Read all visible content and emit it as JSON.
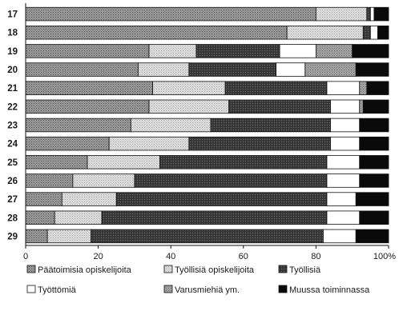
{
  "chart_data": {
    "type": "bar",
    "orientation": "horizontal",
    "stacked": true,
    "title": "",
    "xlabel": "",
    "ylabel": "",
    "xlim": [
      0,
      100
    ],
    "x_ticks": [
      "0",
      "20",
      "40",
      "60",
      "80",
      "100%"
    ],
    "grid": false,
    "legend_position": "bottom",
    "categories": [
      "17",
      "18",
      "19",
      "20",
      "21",
      "22",
      "23",
      "24",
      "25",
      "26",
      "27",
      "28",
      "29"
    ],
    "series": [
      {
        "name": "Päätoimisia opiskelijoita",
        "color": "#8a8a8a",
        "pattern": "dots-dense",
        "values": [
          80,
          72,
          34,
          31,
          35,
          34,
          29,
          23,
          17,
          13,
          10,
          8,
          6
        ]
      },
      {
        "name": "Työllisiä opiskelijoita",
        "color": "#d2d2d2",
        "pattern": "dots-light",
        "values": [
          14,
          21,
          13,
          14,
          20,
          22,
          22,
          22,
          20,
          17,
          15,
          13,
          12
        ]
      },
      {
        "name": "Työllisiä",
        "color": "#3a3a3a",
        "pattern": "dots-dark",
        "values": [
          1,
          2,
          23,
          24,
          28,
          28,
          33,
          39,
          46,
          53,
          58,
          62,
          64
        ]
      },
      {
        "name": "Työttömiä",
        "color": "#ffffff",
        "pattern": "none",
        "values": [
          1,
          2,
          10,
          8,
          9,
          8,
          8,
          8,
          9,
          9,
          8,
          9,
          9
        ]
      },
      {
        "name": "Varusmiehiä ym.",
        "color": "#999999",
        "pattern": "dots-medium",
        "values": [
          0,
          0,
          10,
          14,
          2,
          1,
          0,
          0,
          0,
          0,
          0,
          0,
          0
        ]
      },
      {
        "name": "Muussa toiminnassa",
        "color": "#0a0a0a",
        "pattern": "solid",
        "values": [
          4,
          3,
          10,
          9,
          6,
          7,
          8,
          8,
          8,
          8,
          9,
          8,
          9
        ]
      }
    ],
    "legend": {
      "items": [
        "Päätoimisia opiskelijoita",
        "Työllisiä opiskelijoita",
        "Työllisiä",
        "Työttömiä",
        "Varusmiehiä ym.",
        "Muussa toiminnassa"
      ]
    }
  }
}
